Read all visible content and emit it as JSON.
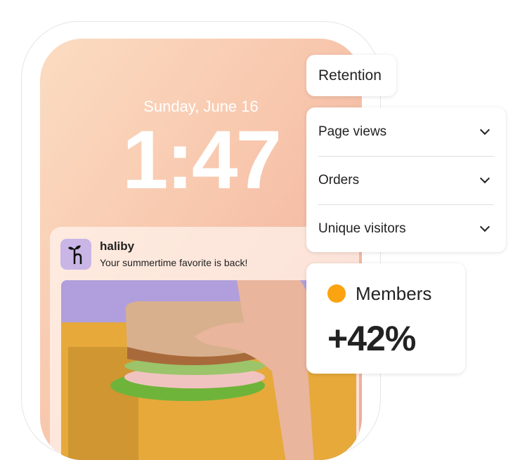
{
  "lockscreen": {
    "date": "Sunday, June 16",
    "time": "1:47"
  },
  "notification": {
    "app_name": "haliby",
    "message": "Your summertime favorite is back!",
    "icon_letter": "h"
  },
  "retention": {
    "label": "Retention"
  },
  "metrics": {
    "items": [
      {
        "label": "Page views"
      },
      {
        "label": "Orders"
      },
      {
        "label": "Unique visitors"
      }
    ]
  },
  "members": {
    "label": "Members",
    "value": "+42%",
    "dot_color": "#fca311"
  }
}
